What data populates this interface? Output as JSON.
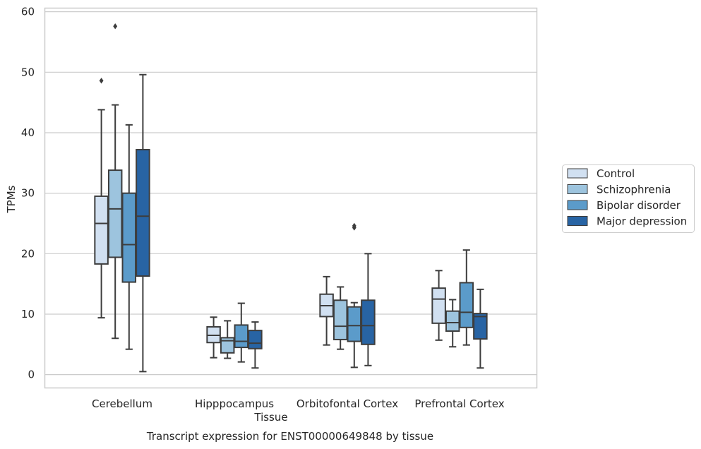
{
  "chart_data": {
    "type": "box",
    "xlabel": "Tissue",
    "ylabel": "TPMs",
    "caption": "Transcript expression for ENST00000649848 by tissue",
    "ylim": [
      -2.2,
      60.6
    ],
    "yticks": [
      0,
      10,
      20,
      30,
      40,
      50,
      60
    ],
    "grid": "horizontal",
    "legend_placement": "right",
    "categories": [
      "Cerebellum",
      "Hipppocampus",
      "Orbitofontal Cortex",
      "Prefrontal Cortex"
    ],
    "series": [
      {
        "name": "Control",
        "color": "#d1e0f1",
        "boxes": [
          {
            "whisker_low": 9.4,
            "q1": 18.3,
            "median": 25.0,
            "q3": 29.5,
            "whisker_high": 43.8,
            "outliers": [
              48.6
            ]
          },
          {
            "whisker_low": 2.8,
            "q1": 5.3,
            "median": 6.5,
            "q3": 7.9,
            "whisker_high": 9.5,
            "outliers": []
          },
          {
            "whisker_low": 4.9,
            "q1": 9.6,
            "median": 11.4,
            "q3": 13.3,
            "whisker_high": 16.2,
            "outliers": []
          },
          {
            "whisker_low": 5.7,
            "q1": 8.5,
            "median": 12.5,
            "q3": 14.3,
            "whisker_high": 17.2,
            "outliers": []
          }
        ]
      },
      {
        "name": "Schizophrenia",
        "color": "#9dc4de",
        "boxes": [
          {
            "whisker_low": 6.0,
            "q1": 19.4,
            "median": 27.4,
            "q3": 33.8,
            "whisker_high": 44.6,
            "outliers": [
              57.6
            ]
          },
          {
            "whisker_low": 2.7,
            "q1": 3.6,
            "median": 5.6,
            "q3": 6.1,
            "whisker_high": 8.9,
            "outliers": []
          },
          {
            "whisker_low": 4.2,
            "q1": 5.8,
            "median": 8.0,
            "q3": 12.3,
            "whisker_high": 14.5,
            "outliers": []
          },
          {
            "whisker_low": 4.6,
            "q1": 7.2,
            "median": 8.6,
            "q3": 10.5,
            "whisker_high": 12.4,
            "outliers": []
          }
        ]
      },
      {
        "name": "Bipolar disorder",
        "color": "#5b9bca",
        "boxes": [
          {
            "whisker_low": 4.2,
            "q1": 15.3,
            "median": 21.5,
            "q3": 30.0,
            "whisker_high": 41.3,
            "outliers": []
          },
          {
            "whisker_low": 2.1,
            "q1": 4.5,
            "median": 5.5,
            "q3": 8.2,
            "whisker_high": 11.8,
            "outliers": []
          },
          {
            "whisker_low": 1.2,
            "q1": 5.5,
            "median": 8.1,
            "q3": 11.2,
            "whisker_high": 11.9,
            "outliers": [
              24.3,
              24.6
            ]
          },
          {
            "whisker_low": 4.9,
            "q1": 7.8,
            "median": 10.3,
            "q3": 15.2,
            "whisker_high": 20.6,
            "outliers": []
          }
        ]
      },
      {
        "name": "Major depression",
        "color": "#2864a4",
        "boxes": [
          {
            "whisker_low": 0.5,
            "q1": 16.3,
            "median": 26.2,
            "q3": 37.2,
            "whisker_high": 49.6,
            "outliers": []
          },
          {
            "whisker_low": 1.1,
            "q1": 4.3,
            "median": 5.2,
            "q3": 7.3,
            "whisker_high": 8.7,
            "outliers": []
          },
          {
            "whisker_low": 1.5,
            "q1": 5.0,
            "median": 8.1,
            "q3": 12.3,
            "whisker_high": 20.0,
            "outliers": []
          },
          {
            "whisker_low": 1.1,
            "q1": 5.9,
            "median": 9.6,
            "q3": 10.1,
            "whisker_high": 14.1,
            "outliers": []
          }
        ]
      }
    ]
  }
}
